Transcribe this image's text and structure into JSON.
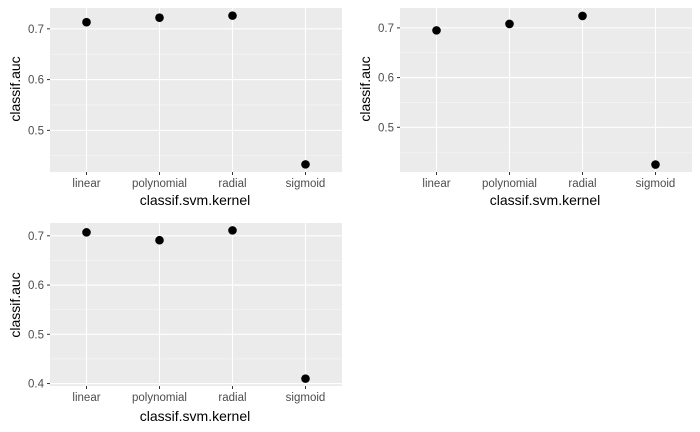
{
  "colors": {
    "panel_bg": "#ebebeb",
    "grid_major": "#ffffff",
    "grid_minor": "#f7f7f7",
    "point": "#000000",
    "tick_text": "#4d4d4d",
    "tick_mark": "#333333",
    "axis_title": "#000000",
    "page_bg": "#ffffff"
  },
  "chart_data": [
    {
      "type": "scatter",
      "x_type": "categorical",
      "categories": [
        "linear",
        "polynomial",
        "radial",
        "sigmoid"
      ],
      "series": [
        {
          "values": [
            0.713,
            0.722,
            0.726,
            0.433
          ]
        }
      ],
      "xlabel": "classif.svm.kernel",
      "ylabel": "classif.auc",
      "ylim": [
        0.418,
        0.741
      ],
      "yticks": [
        0.5,
        0.6,
        0.7
      ],
      "ytick_labels": [
        "0.5",
        "0.6",
        "0.7"
      ],
      "grid": true
    },
    {
      "type": "scatter",
      "x_type": "categorical",
      "categories": [
        "linear",
        "polynomial",
        "radial",
        "sigmoid"
      ],
      "series": [
        {
          "values": [
            0.695,
            0.708,
            0.724,
            0.425
          ]
        }
      ],
      "xlabel": "classif.svm.kernel",
      "ylabel": "classif.auc",
      "ylim": [
        0.41,
        0.74
      ],
      "yticks": [
        0.5,
        0.6,
        0.7
      ],
      "ytick_labels": [
        "0.5",
        "0.6",
        "0.7"
      ],
      "grid": true
    },
    {
      "type": "scatter",
      "x_type": "categorical",
      "categories": [
        "linear",
        "polynomial",
        "radial",
        "sigmoid"
      ],
      "series": [
        {
          "values": [
            0.707,
            0.691,
            0.711,
            0.41
          ]
        }
      ],
      "xlabel": "classif.svm.kernel",
      "ylabel": "classif.auc",
      "ylim": [
        0.395,
        0.726
      ],
      "yticks": [
        0.4,
        0.5,
        0.6,
        0.7
      ],
      "ytick_labels": [
        "0.4",
        "0.5",
        "0.6",
        "0.7"
      ],
      "grid": true
    }
  ]
}
